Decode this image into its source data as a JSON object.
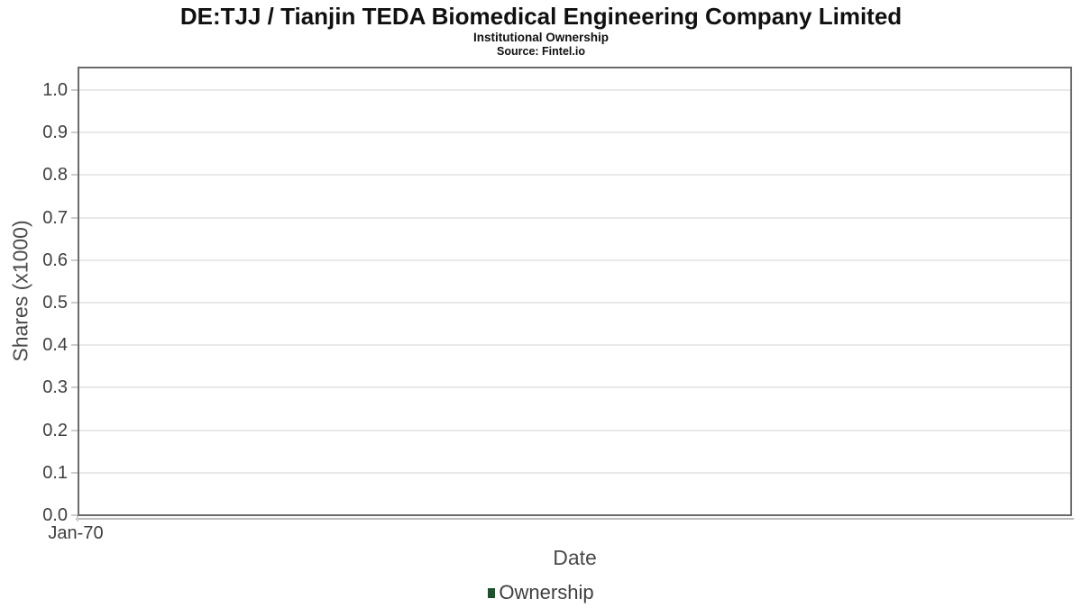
{
  "page": {
    "background": "#ffffff"
  },
  "chart_data": {
    "type": "bar",
    "title": "DE:TJJ / Tianjin TEDA Biomedical Engineering Company Limited",
    "subtitle": "Institutional Ownership",
    "source": "Source: Fintel.io",
    "xlabel": "Date",
    "ylabel": "Shares (x1000)",
    "x_ticks": [
      "Jan-70"
    ],
    "y_ticks": [
      "0.0",
      "0.1",
      "0.2",
      "0.3",
      "0.4",
      "0.5",
      "0.6",
      "0.7",
      "0.8",
      "0.9",
      "1.0"
    ],
    "ylim": [
      0.0,
      1.05
    ],
    "grid": true,
    "legend_position": "bottom",
    "series": [
      {
        "name": "Ownership",
        "color": "#1f512c",
        "values": []
      }
    ]
  },
  "colors": {
    "grid_line": "#e9e9e9",
    "axis_border": "#6a6a6a",
    "secondary_axis_line": "#bdbdbd",
    "tick_mark": "#cdcdcd",
    "tick_text": "#3f3f3f",
    "axis_title_text": "#4a4a4a",
    "title_text": "#101010"
  }
}
